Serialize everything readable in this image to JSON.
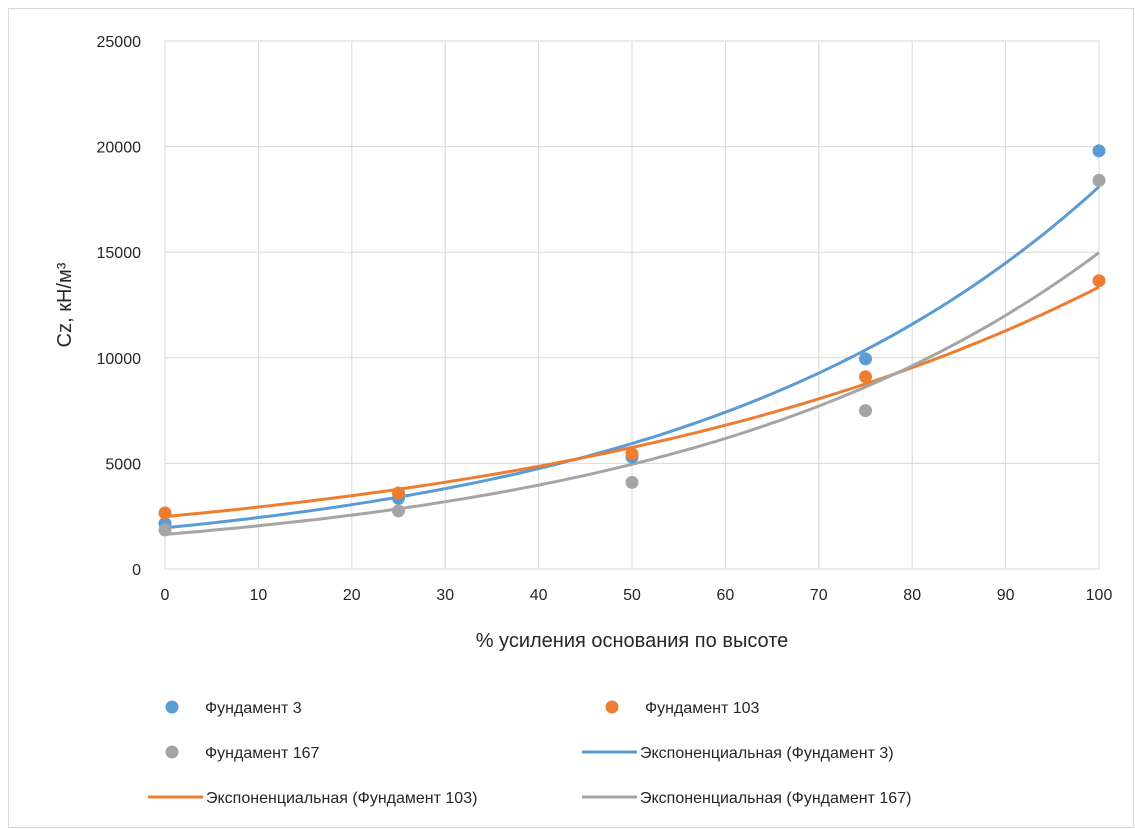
{
  "chart_data": {
    "type": "scatter",
    "xlabel": "% усиления основания по высоте",
    "ylabel": "Cz, кН/м³",
    "xlim": [
      0,
      100
    ],
    "ylim": [
      0,
      25000
    ],
    "xticks": [
      0,
      10,
      20,
      30,
      40,
      50,
      60,
      70,
      80,
      90,
      100
    ],
    "yticks": [
      0,
      5000,
      10000,
      15000,
      20000,
      25000
    ],
    "xtick_labels": [
      "0",
      "10",
      "20",
      "30",
      "40",
      "50",
      "60",
      "70",
      "80",
      "90",
      "100"
    ],
    "ytick_labels": [
      "0",
      "5000",
      "10000",
      "15000",
      "20000",
      "25000"
    ],
    "grid": true,
    "legend_position": "bottom",
    "series": [
      {
        "name": "Фундамент 3",
        "color": "#5b9bd5",
        "x": [
          0,
          25,
          50,
          75,
          100
        ],
        "y": [
          2150,
          3350,
          5300,
          9950,
          19800
        ]
      },
      {
        "name": "Фундамент 103",
        "color": "#ed7d31",
        "x": [
          0,
          25,
          50,
          75,
          100
        ],
        "y": [
          2650,
          3600,
          5450,
          9100,
          13650
        ]
      },
      {
        "name": "Фундамент 167",
        "color": "#a5a5a5",
        "x": [
          0,
          25,
          50,
          75,
          100
        ],
        "y": [
          1850,
          2750,
          4100,
          7500,
          18400
        ]
      }
    ],
    "trendlines": [
      {
        "name": "Экспоненциальная (Фундамент 3)",
        "color": "#5b9bd5",
        "type": "exponential",
        "start": 1950,
        "end": 18100
      },
      {
        "name": "Экспоненциальная (Фундамент 103)",
        "color": "#ed7d31",
        "type": "exponential",
        "start": 2480,
        "end": 13350
      },
      {
        "name": "Экспоненциальная (Фундамент 167)",
        "color": "#a5a5a5",
        "type": "exponential",
        "start": 1640,
        "end": 14980
      }
    ]
  }
}
